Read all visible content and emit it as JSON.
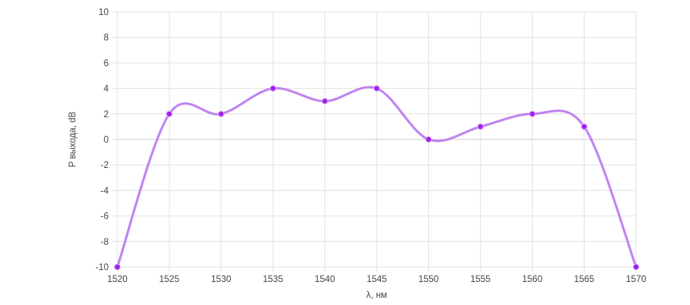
{
  "chart_data": {
    "type": "line",
    "title": "",
    "xlabel": "λ, нм",
    "ylabel": "P выхода, dB",
    "x": [
      1520,
      1525,
      1530,
      1535,
      1540,
      1545,
      1550,
      1555,
      1560,
      1565,
      1570
    ],
    "series": [
      {
        "values": [
          -10,
          2,
          2,
          4,
          3,
          4,
          0,
          1,
          2,
          1,
          -10
        ],
        "color": "#c084f0",
        "marker_color": "#a020f0",
        "smooth": true
      }
    ],
    "xlim": [
      1520,
      1570
    ],
    "ylim": [
      -10,
      10
    ],
    "x_ticks": [
      "1520",
      "1525",
      "1530",
      "1535",
      "1540",
      "1545",
      "1550",
      "1555",
      "1560",
      "1565",
      "1570"
    ],
    "y_ticks": [
      "10",
      "8",
      "6",
      "4",
      "2",
      "0",
      "-2",
      "-4",
      "-6",
      "-8",
      "-10"
    ],
    "grid": true,
    "legend": "none"
  }
}
